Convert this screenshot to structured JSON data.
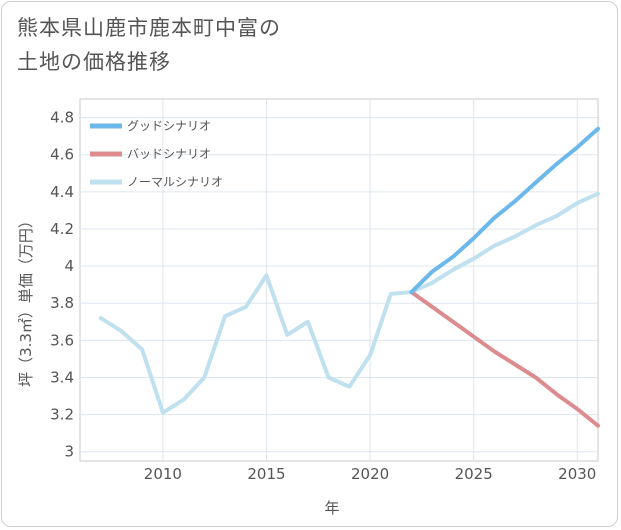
{
  "title": [
    "熊本県山鹿市鹿本町中富の",
    "土地の価格推移"
  ],
  "chart_data": {
    "type": "line",
    "xlabel": "年",
    "ylabel": "坪（3.3㎡）単価（万円）",
    "xlim": [
      2006,
      2031
    ],
    "ylim": [
      2.95,
      4.9
    ],
    "x_ticks": [
      2010,
      2015,
      2020,
      2025,
      2030
    ],
    "y_ticks": [
      3,
      3.2,
      3.4,
      3.6,
      3.8,
      4,
      4.2,
      4.4,
      4.6,
      4.8
    ],
    "grid": true,
    "legend_position": "top-left",
    "series": [
      {
        "name": "グッドシナリオ",
        "color": "#6cb8ea",
        "x": [
          2022,
          2023,
          2024,
          2025,
          2026,
          2027,
          2028,
          2029,
          2030,
          2031
        ],
        "y": [
          3.86,
          3.97,
          4.05,
          4.15,
          4.26,
          4.35,
          4.45,
          4.55,
          4.64,
          4.74
        ]
      },
      {
        "name": "バッドシナリオ",
        "color": "#dc8c8f",
        "x": [
          2022,
          2023,
          2024,
          2025,
          2026,
          2027,
          2028,
          2029,
          2030,
          2031
        ],
        "y": [
          3.86,
          3.78,
          3.7,
          3.62,
          3.54,
          3.47,
          3.4,
          3.31,
          3.23,
          3.14
        ]
      },
      {
        "name": "ノーマルシナリオ",
        "color": "#bfe0ef",
        "x": [
          2007,
          2008,
          2009,
          2010,
          2011,
          2012,
          2013,
          2014,
          2015,
          2016,
          2017,
          2018,
          2019,
          2020,
          2021,
          2022,
          2023,
          2024,
          2025,
          2026,
          2027,
          2028,
          2029,
          2030,
          2031
        ],
        "y": [
          3.72,
          3.65,
          3.55,
          3.21,
          3.28,
          3.4,
          3.73,
          3.78,
          3.95,
          3.63,
          3.7,
          3.4,
          3.35,
          3.52,
          3.85,
          3.86,
          3.91,
          3.98,
          4.04,
          4.11,
          4.16,
          4.22,
          4.27,
          4.34,
          4.39
        ]
      }
    ]
  }
}
